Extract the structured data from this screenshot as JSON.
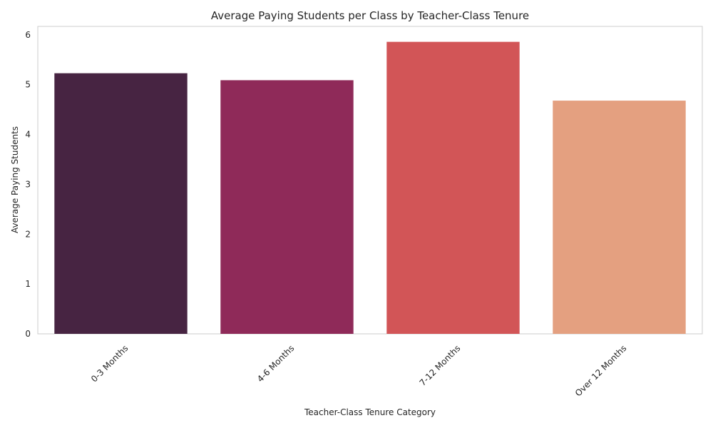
{
  "chart_data": {
    "type": "bar",
    "title": "Average Paying Students per Class by Teacher-Class Tenure",
    "xlabel": "Teacher-Class Tenure Category",
    "ylabel": "Average Paying Students",
    "categories": [
      "0-3 Months",
      "4-6 Months",
      "7-12 Months",
      "Over 12 Months"
    ],
    "values": [
      5.23,
      5.09,
      5.86,
      4.68
    ],
    "colors": [
      "#472442",
      "#8f2a59",
      "#d25557",
      "#e4a080"
    ],
    "ylim": [
      0,
      6.17
    ],
    "yticks": [
      "0",
      "1",
      "2",
      "3",
      "4",
      "5",
      "6"
    ],
    "grid": false,
    "legend": "none"
  }
}
